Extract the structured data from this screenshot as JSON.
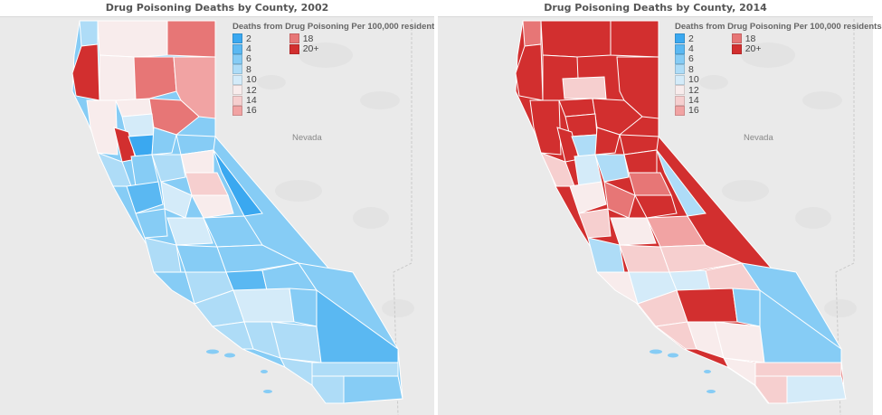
{
  "maps": [
    {
      "title": "Drug Poisoning Deaths by County, 2002",
      "state_label": "Nevada",
      "legend_title": "Deaths from Drug Poisoning Per 100,000 residents",
      "legend": [
        {
          "label": "2",
          "color": "#3aa8f0"
        },
        {
          "label": "4",
          "color": "#5ab8f2"
        },
        {
          "label": "6",
          "color": "#86ccf5"
        },
        {
          "label": "8",
          "color": "#aedcf7"
        },
        {
          "label": "10",
          "color": "#d4ebf9"
        },
        {
          "label": "12",
          "color": "#f8ecec"
        },
        {
          "label": "14",
          "color": "#f6cfcf"
        },
        {
          "label": "16",
          "color": "#f1a3a3"
        },
        {
          "label": "18",
          "color": "#e77676"
        },
        {
          "label": "20+",
          "color": "#d22f2f"
        }
      ]
    },
    {
      "title": "Drug Poisoning Deaths by County, 2014",
      "state_label": "Nevada",
      "legend_title": "Deaths from Drug Poisoning Per 100,000 residents",
      "legend": [
        {
          "label": "2",
          "color": "#3aa8f0"
        },
        {
          "label": "4",
          "color": "#5ab8f2"
        },
        {
          "label": "6",
          "color": "#86ccf5"
        },
        {
          "label": "8",
          "color": "#aedcf7"
        },
        {
          "label": "10",
          "color": "#d4ebf9"
        },
        {
          "label": "12",
          "color": "#f8ecec"
        },
        {
          "label": "14",
          "color": "#f6cfcf"
        },
        {
          "label": "16",
          "color": "#f1a3a3"
        },
        {
          "label": "18",
          "color": "#e77676"
        },
        {
          "label": "20+",
          "color": "#d22f2f"
        }
      ]
    }
  ]
}
